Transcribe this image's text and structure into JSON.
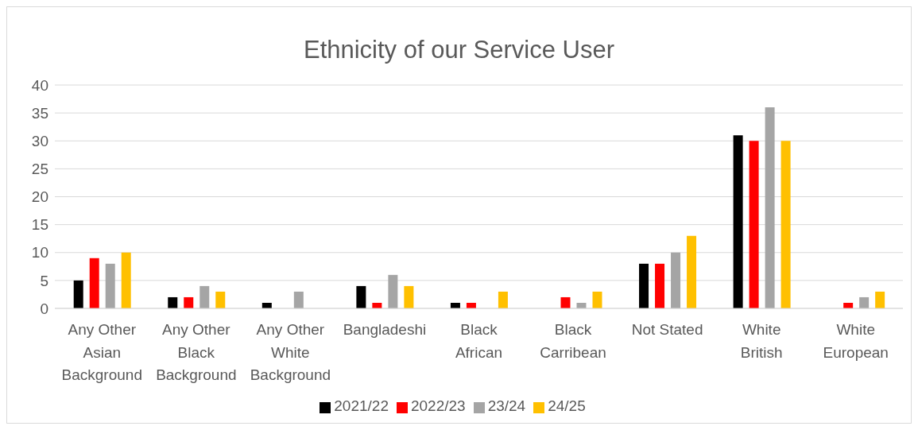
{
  "chart_data": {
    "type": "bar",
    "title": "Ethnicity of our Service User",
    "categories": [
      "Any Other Asian Background",
      "Any Other Black Background",
      "Any Other White Background",
      "Bangladeshi",
      "Black African",
      "Black Carribean",
      "Not Stated",
      "White British",
      "White European"
    ],
    "series": [
      {
        "name": "2021/22",
        "color": "#000000",
        "values": [
          5,
          2,
          1,
          4,
          1,
          null,
          8,
          31,
          null
        ]
      },
      {
        "name": "2022/23",
        "color": "#ff0000",
        "values": [
          9,
          2,
          null,
          1,
          1,
          2,
          8,
          30,
          1
        ]
      },
      {
        "name": "23/24",
        "color": "#a5a5a5",
        "values": [
          8,
          4,
          3,
          6,
          null,
          1,
          10,
          36,
          2
        ]
      },
      {
        "name": "24/25",
        "color": "#ffc000",
        "values": [
          10,
          3,
          null,
          4,
          3,
          3,
          13,
          30,
          3
        ]
      }
    ],
    "ylim": [
      0,
      40
    ],
    "yticks": [
      0,
      5,
      10,
      15,
      20,
      25,
      30,
      35,
      40
    ],
    "grid": "y",
    "legend": "bottom"
  }
}
